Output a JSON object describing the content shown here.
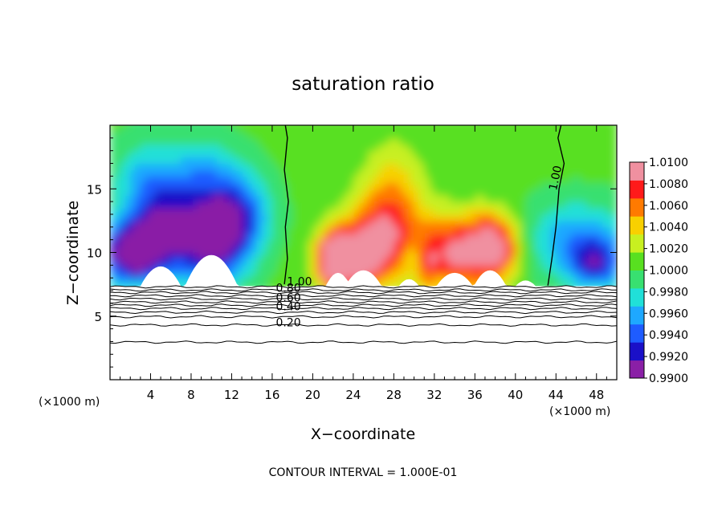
{
  "chart_data": {
    "type": "heatmap",
    "title": "saturation ratio",
    "xlabel": "X−coordinate",
    "ylabel": "Z−coordinate",
    "x_unit_left": "(×1000 m)",
    "x_unit_right": "(×1000 m)",
    "footer": "CONTOUR INTERVAL = 1.000E-01",
    "xlim": [
      0,
      50
    ],
    "ylim": [
      0,
      20
    ],
    "x_ticks": [
      4,
      8,
      12,
      16,
      20,
      24,
      28,
      32,
      36,
      40,
      44,
      48
    ],
    "y_ticks": [
      5,
      10,
      15
    ],
    "colorbar": {
      "min": 0.99,
      "max": 1.01,
      "levels": [
        "0.9900",
        "0.9920",
        "0.9940",
        "0.9960",
        "0.9980",
        "1.0000",
        "1.0020",
        "1.0040",
        "1.0060",
        "1.0080",
        "1.0100"
      ],
      "colors": [
        "#8a1fa6",
        "#1a10c8",
        "#1e5cff",
        "#1ea8ff",
        "#20e0d8",
        "#38e070",
        "#58e020",
        "#c8f020",
        "#f8d000",
        "#ff7a00",
        "#ff1a1a",
        "#f090a0"
      ]
    },
    "contour_labels": [
      {
        "text": "1.00",
        "x": 18.7,
        "z": 7.4
      },
      {
        "text": "0.80",
        "x": 17.6,
        "z": 6.9
      },
      {
        "text": "0.60",
        "x": 17.6,
        "z": 6.15
      },
      {
        "text": "0.40",
        "x": 17.6,
        "z": 5.45
      },
      {
        "text": "0.20",
        "x": 17.6,
        "z": 4.2
      },
      {
        "text": "1.00",
        "x": 44.3,
        "z": 15.8
      }
    ],
    "contour_lines_below": [
      7.3,
      7.05,
      6.85,
      6.6,
      6.35,
      6.1,
      5.85,
      5.6,
      5.3,
      4.95,
      4.3,
      2.95
    ],
    "cloud_base_z": 7.35
  }
}
